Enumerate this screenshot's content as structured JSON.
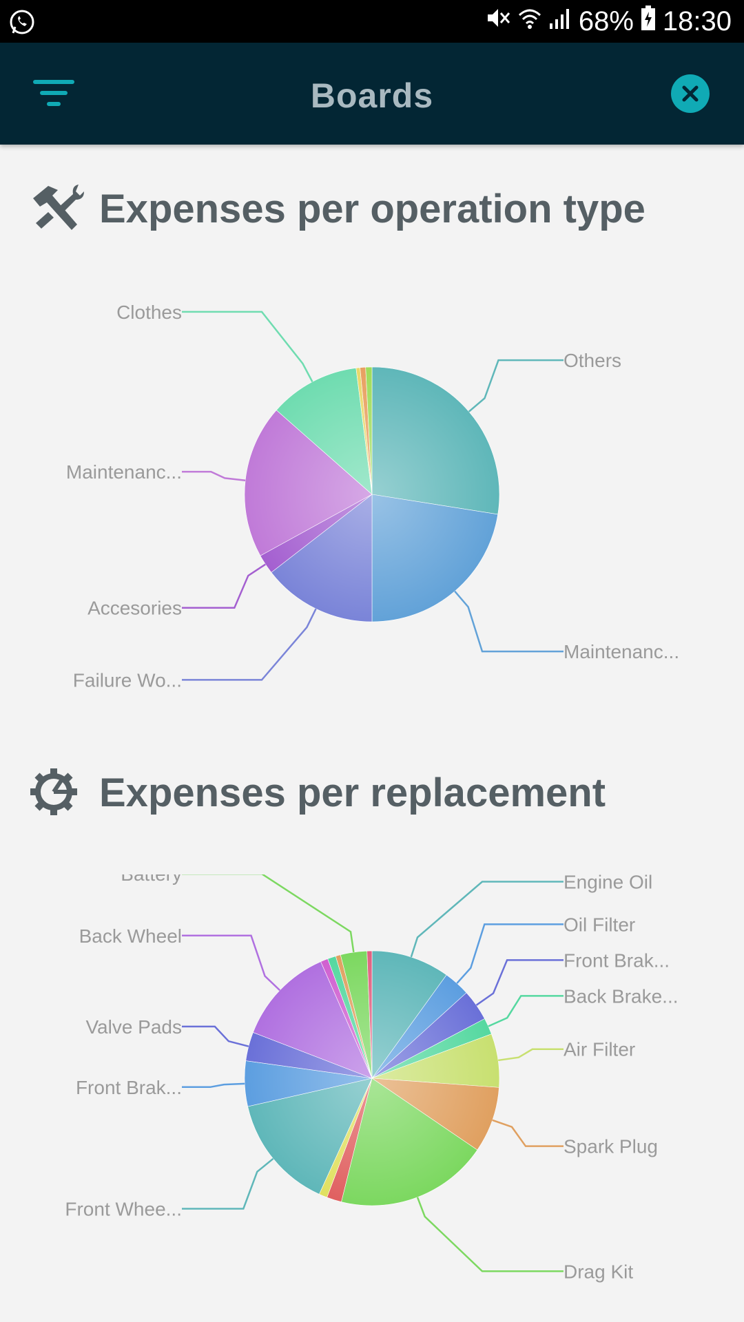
{
  "status_bar": {
    "battery": "68%",
    "time": "18:30",
    "icons": [
      "whatsapp-icon",
      "mute-icon",
      "wifi-icon",
      "signal-icon",
      "battery-icon"
    ]
  },
  "app_bar": {
    "title": "Boards",
    "menu_icon": "filter-menu-icon",
    "close_icon": "close-icon",
    "accent_color": "#10aab5",
    "background_color": "#032634"
  },
  "sections": [
    {
      "title": "Expenses per operation type",
      "icon": "tools-icon"
    },
    {
      "title": "Expenses per replacement",
      "icon": "gear-icon"
    }
  ],
  "chart_data": [
    {
      "type": "pie",
      "title": "Expenses per operation type",
      "slices": [
        {
          "label": "Others",
          "value": 27.5,
          "color": "#5fb7b9"
        },
        {
          "label": "Maintenanc...",
          "value": 22.5,
          "color": "#62a2d8"
        },
        {
          "label": "Failure Wo...",
          "value": 14.5,
          "color": "#7a84d8"
        },
        {
          "label": "Accesories",
          "value": 2.5,
          "color": "#a45fd0"
        },
        {
          "label": "Maintenanc...",
          "value": 19.5,
          "color": "#c07ad8"
        },
        {
          "label": "Clothes",
          "value": 11.5,
          "color": "#6fdcb0"
        },
        {
          "label": "",
          "value": 0.5,
          "color": "#e8d86a"
        },
        {
          "label": "",
          "value": 0.7,
          "color": "#e8a060"
        },
        {
          "label": "",
          "value": 0.8,
          "color": "#9fdc5a"
        }
      ]
    },
    {
      "type": "pie",
      "title": "Expenses per replacement",
      "slices": [
        {
          "label": "Engine Oil",
          "value": 9.5,
          "color": "#5fb7b9"
        },
        {
          "label": "Oil Filter",
          "value": 3.2,
          "color": "#5c9ee0"
        },
        {
          "label": "Front Brak...",
          "value": 3.8,
          "color": "#6a70d8"
        },
        {
          "label": "Back Brake...",
          "value": 2.0,
          "color": "#55d8a0"
        },
        {
          "label": "Air Filter",
          "value": 6.5,
          "color": "#c8e070"
        },
        {
          "label": "Spark Plug",
          "value": 8.0,
          "color": "#e0a060"
        },
        {
          "label": "Drag Kit",
          "value": 18.5,
          "color": "#7cd860"
        },
        {
          "label": "",
          "value": 1.8,
          "color": "#e06060"
        },
        {
          "label": "",
          "value": 1.0,
          "color": "#e0e060"
        },
        {
          "label": "Front Whee...",
          "value": 14.0,
          "color": "#5fb7b9"
        },
        {
          "label": "Front Brak...",
          "value": 5.5,
          "color": "#5c9ee0"
        },
        {
          "label": "Valve Pads",
          "value": 3.5,
          "color": "#6a70d8"
        },
        {
          "label": "Back Wheel",
          "value": 12.0,
          "color": "#b070e0"
        },
        {
          "label": "",
          "value": 0.9,
          "color": "#d060d0"
        },
        {
          "label": "",
          "value": 1.0,
          "color": "#55d8a0"
        },
        {
          "label": "",
          "value": 0.6,
          "color": "#e0a060"
        },
        {
          "label": "Battery",
          "value": 3.2,
          "color": "#7cd860"
        },
        {
          "label": "",
          "value": 0.6,
          "color": "#e06080"
        }
      ]
    }
  ]
}
